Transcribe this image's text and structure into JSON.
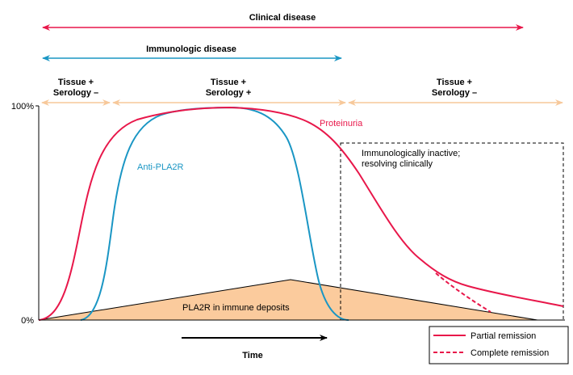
{
  "header": {
    "clinical_disease": "Clinical disease",
    "immunologic_disease": "Immunologic disease"
  },
  "phases": [
    {
      "line1": "Tissue +",
      "line2": "Serology –"
    },
    {
      "line1": "Tissue +",
      "line2": "Serology +"
    },
    {
      "line1": "Tissue +",
      "line2": "Serology –"
    }
  ],
  "axis": {
    "y_max_label": "100%",
    "y_min_label": "0%",
    "x_label": "Time"
  },
  "curves": {
    "proteinuria_label": "Proteinuria",
    "antibody_label": "Anti-PLA2R",
    "deposits_label": "PLA2R in immune deposits"
  },
  "annotation": {
    "line1": "Immunologically inactive;",
    "line2": "resolving clinically"
  },
  "legend": {
    "partial": "Partial remission",
    "complete": "Complete remission"
  },
  "colors": {
    "clinical": "#e8174a",
    "immunologic": "#1a96c4",
    "phase_arrow": "#f7c89a",
    "deposits_fill": "#fbcb9d",
    "proteinuria": "#e8174a",
    "antibody": "#1a96c4"
  }
}
